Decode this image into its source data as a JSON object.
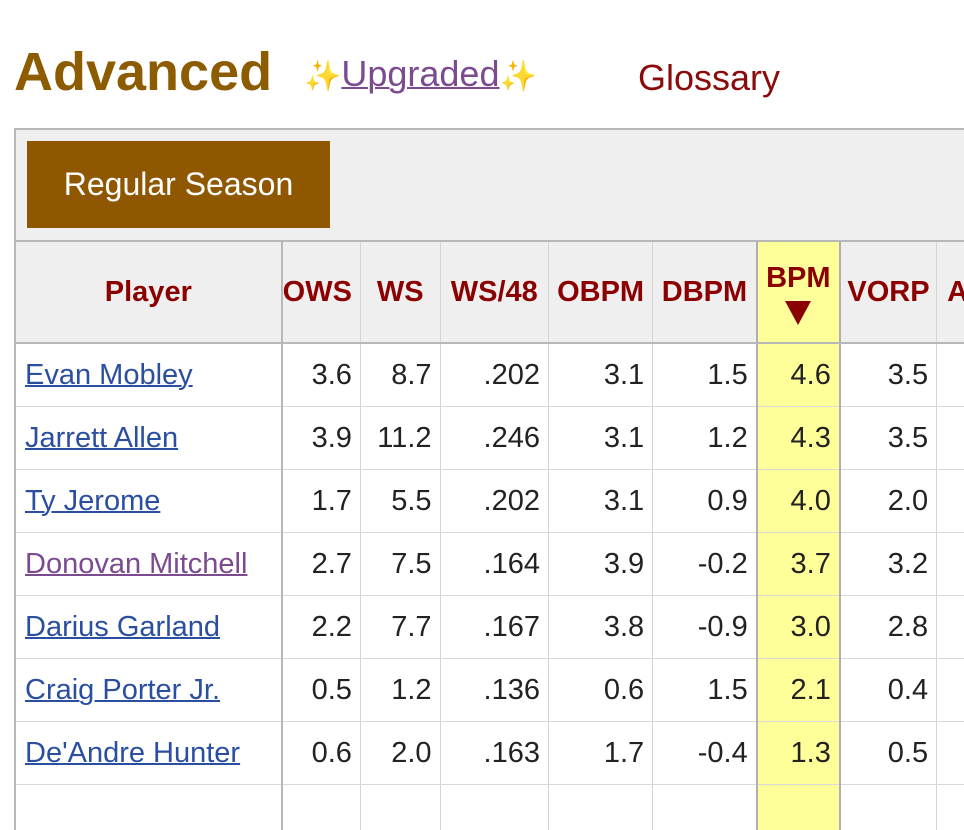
{
  "header": {
    "title": "Advanced",
    "upgraded_link": "Upgraded",
    "sparkle_left": "✨",
    "sparkle_right": "✨",
    "glossary_link": "Glossary"
  },
  "filters": {
    "active_tab": "Regular Season"
  },
  "table": {
    "sorted_column": "BPM",
    "columns": {
      "player": "Player",
      "ows": "OWS",
      "ws": "WS",
      "ws48": "WS/48",
      "obpm": "OBPM",
      "dbpm": "DBPM",
      "bpm": "BPM",
      "vorp": "VORP",
      "clipped": "A"
    },
    "rows": [
      {
        "player": "Evan Mobley",
        "ows": "3.6",
        "ws": "8.7",
        "ws48": ".202",
        "obpm": "3.1",
        "dbpm": "1.5",
        "bpm": "4.6",
        "vorp": "3.5"
      },
      {
        "player": "Jarrett Allen",
        "ows": "3.9",
        "ws": "11.2",
        "ws48": ".246",
        "obpm": "3.1",
        "dbpm": "1.2",
        "bpm": "4.3",
        "vorp": "3.5"
      },
      {
        "player": "Ty Jerome",
        "ows": "1.7",
        "ws": "5.5",
        "ws48": ".202",
        "obpm": "3.1",
        "dbpm": "0.9",
        "bpm": "4.0",
        "vorp": "2.0"
      },
      {
        "player": "Donovan Mitchell",
        "ows": "2.7",
        "ws": "7.5",
        "ws48": ".164",
        "obpm": "3.9",
        "dbpm": "-0.2",
        "bpm": "3.7",
        "vorp": "3.2"
      },
      {
        "player": "Darius Garland",
        "ows": "2.2",
        "ws": "7.7",
        "ws48": ".167",
        "obpm": "3.8",
        "dbpm": "-0.9",
        "bpm": "3.0",
        "vorp": "2.8"
      },
      {
        "player": "Craig Porter Jr.",
        "ows": "0.5",
        "ws": "1.2",
        "ws48": ".136",
        "obpm": "0.6",
        "dbpm": "1.5",
        "bpm": "2.1",
        "vorp": "0.4"
      },
      {
        "player": "De'Andre Hunter",
        "ows": "0.6",
        "ws": "2.0",
        "ws48": ".163",
        "obpm": "1.7",
        "dbpm": "-0.4",
        "bpm": "1.3",
        "vorp": "0.5"
      }
    ]
  }
}
